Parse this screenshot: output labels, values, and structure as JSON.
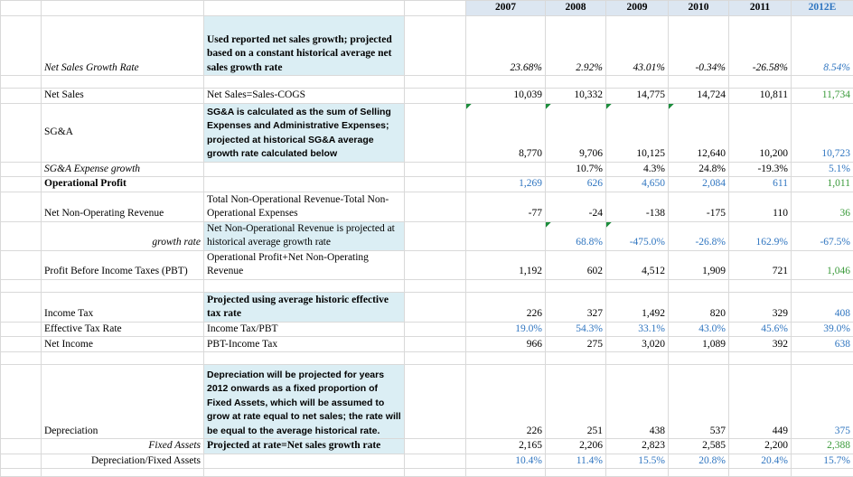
{
  "header": {
    "years": [
      "2007",
      "2008",
      "2009",
      "2010",
      "2011",
      "2012E"
    ]
  },
  "rows": [
    {
      "label": "Net Sales Growth Rate",
      "note": "Used reported net sales growth; projected based on a constant historical average net sales growth rate",
      "values": [
        "23.68%",
        "2.92%",
        "43.01%",
        "-0.34%",
        "-26.58%",
        "8.54%"
      ]
    },
    {
      "label": "Net Sales",
      "note": "Net Sales=Sales-COGS",
      "values": [
        "10,039",
        "10,332",
        "14,775",
        "14,724",
        "10,811",
        "11,734"
      ]
    },
    {
      "label": "SG&A",
      "note": "SG&A is calculated as the sum of Selling Expenses and Administrative Expenses; projected at historical SG&A average growth rate calculated below",
      "values": [
        "8,770",
        "9,706",
        "10,125",
        "12,640",
        "10,200",
        "10,723"
      ]
    },
    {
      "label": "SG&A Expense growth",
      "values": [
        "10.7%",
        "4.3%",
        "24.8%",
        "-19.3%",
        "5.1%"
      ]
    },
    {
      "label": "Operational Profit",
      "values": [
        "1,269",
        "626",
        "4,650",
        "2,084",
        "611",
        "1,011"
      ]
    },
    {
      "label": "Net Non-Operating Revenue",
      "note": "Total Non-Operational Revenue-Total Non-Operational Expenses",
      "values": [
        "-77",
        "-24",
        "-138",
        "-175",
        "110",
        "36"
      ]
    },
    {
      "label": "growth rate",
      "note": "Net Non-Operational Revenue is projected at historical average growth rate",
      "values": [
        "68.8%",
        "-475.0%",
        "-26.8%",
        "162.9%",
        "-67.5%"
      ]
    },
    {
      "label": "Profit Before Income Taxes (PBT)",
      "note": "Operational Profit+Net Non-Operating Revenue",
      "values": [
        "1,192",
        "602",
        "4,512",
        "1,909",
        "721",
        "1,046"
      ]
    },
    {
      "label": "Income Tax",
      "note": "Projected using average historic effective tax rate",
      "values": [
        "226",
        "327",
        "1,492",
        "820",
        "329",
        "408"
      ]
    },
    {
      "label": "Effective Tax Rate",
      "note": "Income Tax/PBT",
      "values": [
        "19.0%",
        "54.3%",
        "33.1%",
        "43.0%",
        "45.6%",
        "39.0%"
      ]
    },
    {
      "label": "Net Income",
      "note": "PBT-Income Tax",
      "values": [
        "966",
        "275",
        "3,020",
        "1,089",
        "392",
        "638"
      ]
    },
    {
      "label": "Depreciation",
      "note": "Depreciation will be projected for years 2012 onwards as a fixed proportion of Fixed Assets, which will be assumed to grow at rate equal to net sales; the rate will be equal to the average historical rate.",
      "values": [
        "226",
        "251",
        "438",
        "537",
        "449",
        "375"
      ]
    },
    {
      "label": "Fixed Assets",
      "note": "Projected at rate=Net sales growth rate",
      "values": [
        "2,165",
        "2,206",
        "2,823",
        "2,585",
        "2,200",
        "2,388"
      ]
    },
    {
      "label": "Depreciation/Fixed Assets",
      "values": [
        "10.4%",
        "11.4%",
        "15.5%",
        "20.8%",
        "20.4%",
        "15.7%"
      ]
    }
  ]
}
